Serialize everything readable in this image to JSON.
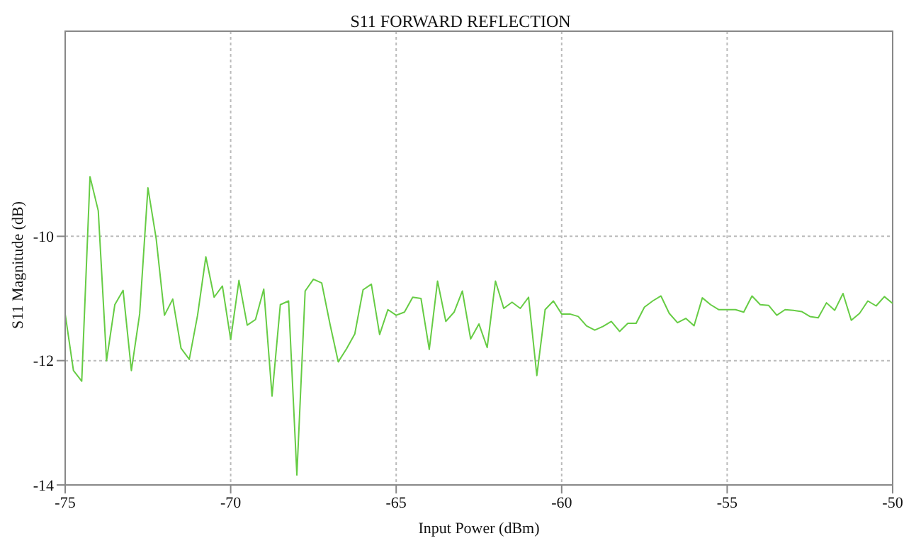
{
  "chart_data": {
    "type": "line",
    "title": "S11 FORWARD REFLECTION",
    "xlabel": "Input Power (dBm)",
    "ylabel": "S11 Magnitude (dB)",
    "x": [
      -75,
      -74.75,
      -74.5,
      -74.25,
      -74,
      -73.75,
      -73.5,
      -73.25,
      -73,
      -72.75,
      -72.5,
      -72.25,
      -72,
      -71.75,
      -71.5,
      -71.25,
      -71,
      -70.75,
      -70.5,
      -70.25,
      -70,
      -69.75,
      -69.5,
      -69.25,
      -69,
      -68.75,
      -68.5,
      -68.25,
      -68,
      -67.75,
      -67.5,
      -67.25,
      -67,
      -66.75,
      -66.5,
      -66.25,
      -66,
      -65.75,
      -65.5,
      -65.25,
      -65,
      -64.75,
      -64.5,
      -64.25,
      -64,
      -63.75,
      -63.5,
      -63.25,
      -63,
      -62.75,
      -62.5,
      -62.25,
      -62,
      -61.75,
      -61.5,
      -61.25,
      -61,
      -60.75,
      -60.5,
      -60.25,
      -60,
      -59.75,
      -59.5,
      -59.25,
      -59,
      -58.75,
      -58.5,
      -58.25,
      -58,
      -57.75,
      -57.5,
      -57.25,
      -57,
      -56.75,
      -56.5,
      -56.25,
      -56,
      -55.75,
      -55.5,
      -55.25,
      -55,
      -54.75,
      -54.5,
      -54.25,
      -54,
      -53.75,
      -53.5,
      -53.25,
      -53,
      -52.75,
      -52.5,
      -52.25,
      -52,
      -51.75,
      -51.5,
      -51.25,
      -51,
      -50.75,
      -50.5,
      -50.25,
      -50
    ],
    "series": [
      {
        "color": "#66cc44",
        "values": [
          -11.25,
          -12.16,
          -12.33,
          -9.04,
          -9.59,
          -12.0,
          -11.1,
          -10.87,
          -12.16,
          -11.25,
          -9.22,
          -10.04,
          -11.27,
          -11.01,
          -11.8,
          -11.98,
          -11.27,
          -10.33,
          -10.98,
          -10.8,
          -11.66,
          -10.71,
          -11.43,
          -11.34,
          -10.85,
          -12.57,
          -11.1,
          -11.04,
          -13.84,
          -10.88,
          -10.69,
          -10.75,
          -11.41,
          -12.02,
          -11.81,
          -11.57,
          -10.86,
          -10.77,
          -11.58,
          -11.18,
          -11.27,
          -11.22,
          -10.98,
          -11.0,
          -11.82,
          -10.72,
          -11.37,
          -11.22,
          -10.88,
          -11.65,
          -11.41,
          -11.79,
          -10.72,
          -11.16,
          -11.06,
          -11.16,
          -10.98,
          -12.24,
          -11.18,
          -11.04,
          -11.25,
          -11.25,
          -11.29,
          -11.44,
          -11.51,
          -11.45,
          -11.37,
          -11.53,
          -11.4,
          -11.4,
          -11.14,
          -11.04,
          -10.96,
          -11.24,
          -11.39,
          -11.32,
          -11.44,
          -10.99,
          -11.1,
          -11.18,
          -11.18,
          -11.18,
          -11.22,
          -10.96,
          -11.1,
          -11.11,
          -11.27,
          -11.18,
          -11.19,
          -11.21,
          -11.29,
          -11.31,
          -11.07,
          -11.19,
          -10.92,
          -11.35,
          -11.24,
          -11.04,
          -11.12,
          -10.97,
          -11.08
        ]
      }
    ],
    "xlim": [
      -75,
      -50
    ],
    "xticks": [
      -75,
      -70,
      -65,
      -60,
      -55,
      -50
    ],
    "ylim": [
      -14,
      -6.7
    ],
    "yticks": [
      -14,
      -12,
      -10
    ],
    "grid": true,
    "marker": "none",
    "line_style": "solid"
  }
}
